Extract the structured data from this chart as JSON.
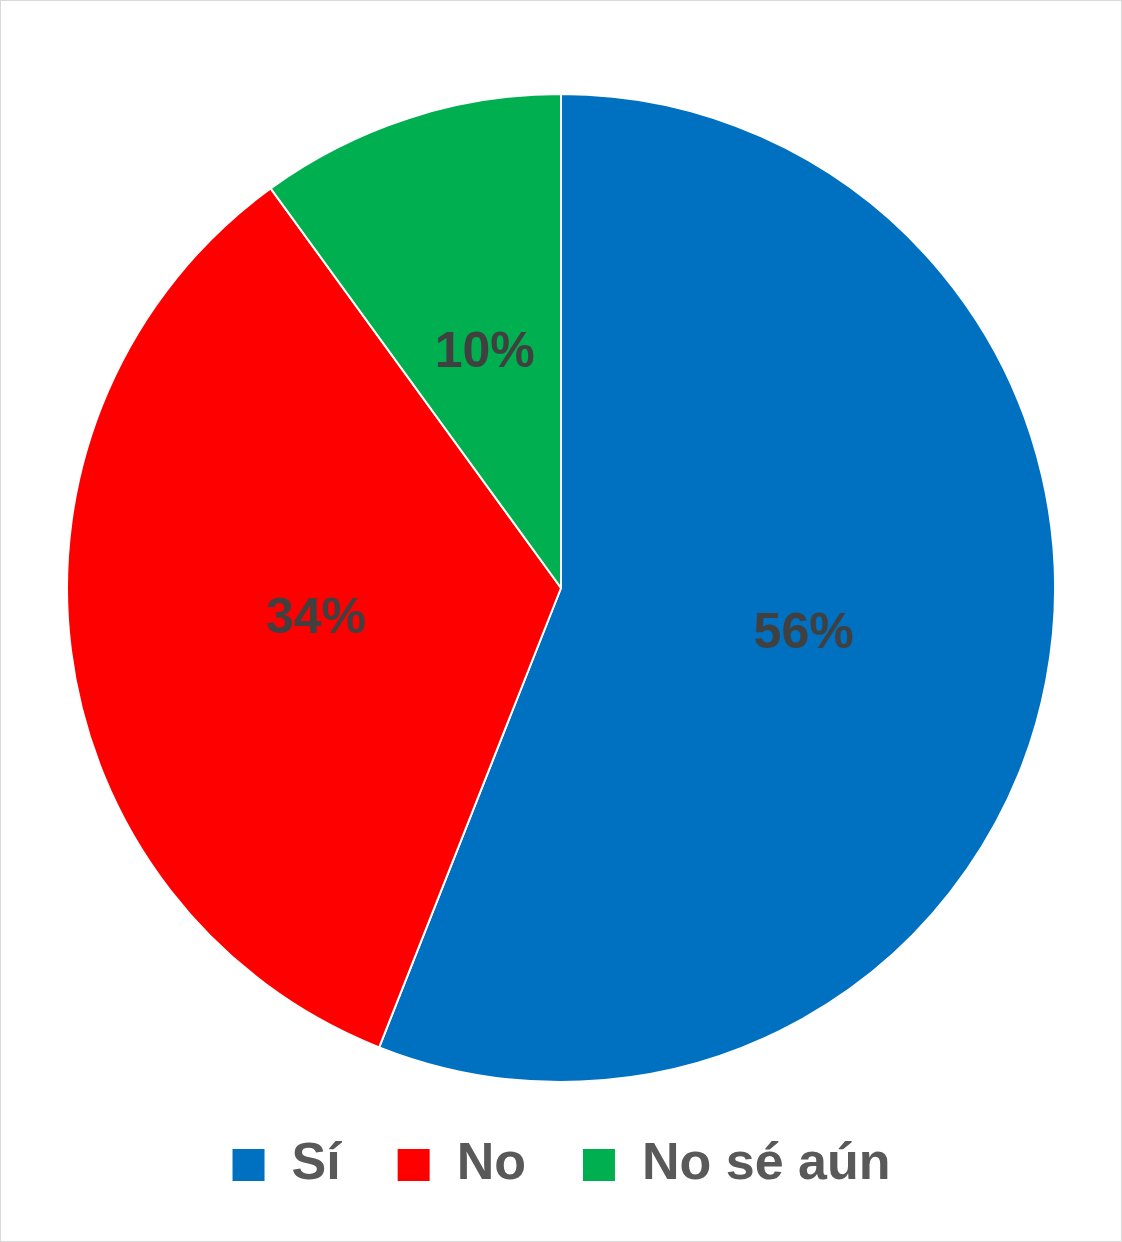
{
  "chart_data": {
    "type": "pie",
    "categories": [
      "Sí",
      "No",
      "No sé aún"
    ],
    "values": [
      56,
      34,
      10
    ],
    "colors": [
      "#0070c0",
      "#ff0000",
      "#00b050"
    ],
    "value_labels": [
      "56%",
      "34%",
      "10%"
    ],
    "legend": "bottom"
  }
}
